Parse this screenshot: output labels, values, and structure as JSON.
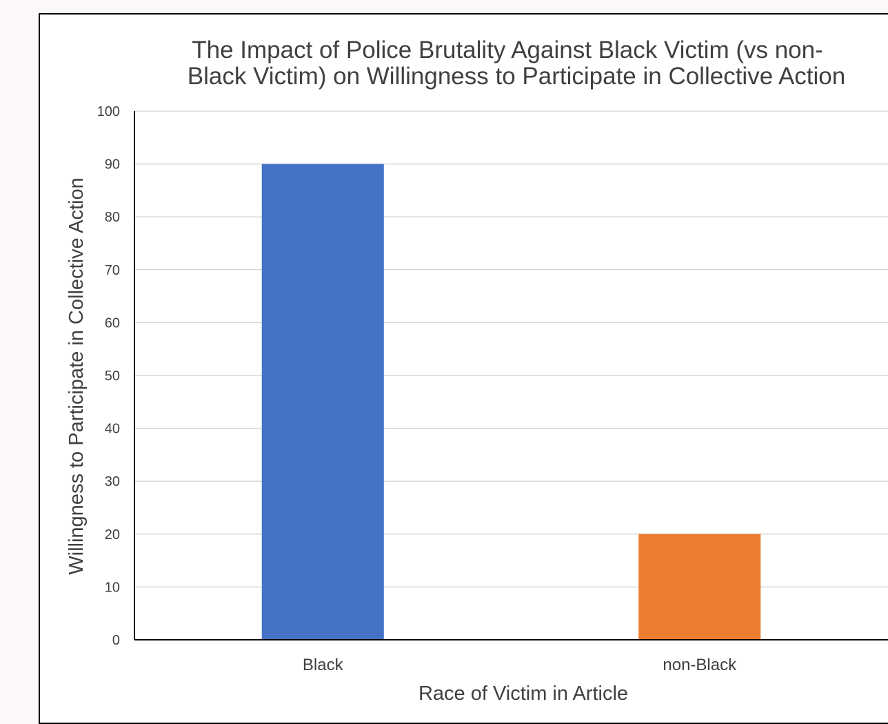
{
  "chart_data": {
    "type": "bar",
    "title_lines": [
      "The Impact of Police Brutality Against Black Victim (vs non-",
      "Black Victim) on Willingness to Participate in Collective Action"
    ],
    "xlabel": "Race of Victim in Article",
    "ylabel": "Willingness to Participate in Collective Action",
    "categories": [
      "Black",
      "non-Black"
    ],
    "values": [
      90,
      20
    ],
    "bar_colors": [
      "#4472c4",
      "#ed7d31"
    ],
    "ylim": [
      0,
      100
    ],
    "yticks": [
      0,
      10,
      20,
      30,
      40,
      50,
      60,
      70,
      80,
      90,
      100
    ],
    "grid": true,
    "legend": "none"
  },
  "colors": {
    "gridline": "#d9d9d9",
    "text": "#404040",
    "axis": "#000000"
  }
}
